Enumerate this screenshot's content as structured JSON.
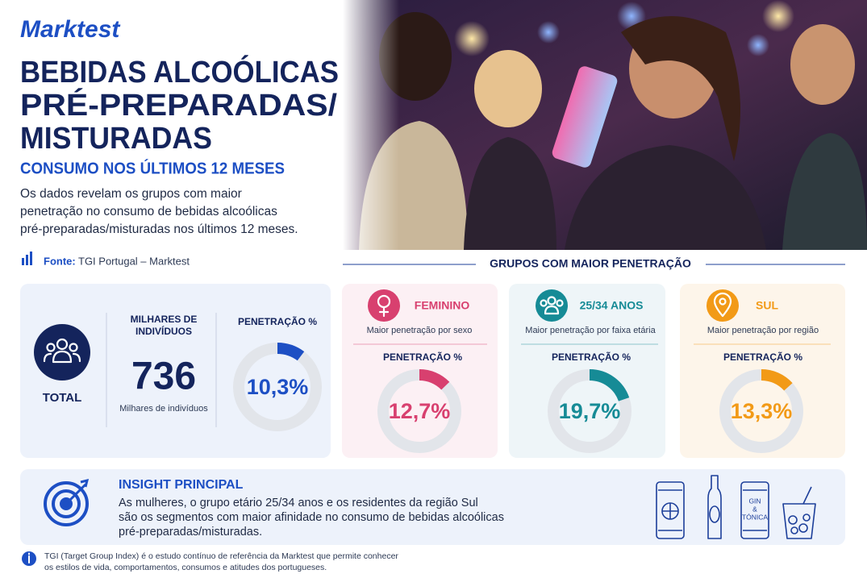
{
  "header": {
    "brand": "Marktest",
    "title": [
      "BEBIDAS ALCOÓLICAS",
      "PRÉ-PREPARADAS/",
      "MISTURADAS"
    ],
    "subtitle": "CONSUMO NOS ÚLTIMOS 12 MESES",
    "description": [
      "Os dados revelam os grupos com maior",
      "penetração no consumo de bebidas alcoólicas",
      "pré-preparadas/misturadas nos últimos 12 meses."
    ],
    "source_label": "Fonte:",
    "source": "TGI Portugal – Marktest"
  },
  "groups_heading": "GRUPOS COM MAIOR PENETRAÇÃO",
  "total": {
    "label": "TOTAL",
    "thousands_heading": [
      "MILHARES DE",
      "INDIVÍDUOS"
    ],
    "thousands": 736,
    "thousands_caption": "Milhares de indivíduos",
    "penetration_heading": "PENETRAÇÃO %",
    "penetration": {
      "value": 10.3,
      "label": "10,3%"
    },
    "color": "#1d4fc4"
  },
  "groups": [
    {
      "label": "FEMININO",
      "caption": "Maior penetração por sexo",
      "penetration_heading": "PENETRAÇÃO %",
      "penetration": {
        "value": 12.7,
        "label": "12,7%"
      },
      "color": "#d8406f"
    },
    {
      "label": "25/34 ANOS",
      "caption": "Maior penetração por faixa etária",
      "penetration_heading": "PENETRAÇÃO %",
      "penetration": {
        "value": 19.7,
        "label": "19,7%"
      },
      "color": "#168b96"
    },
    {
      "label": "SUL",
      "caption": "Maior penetração por região",
      "penetration_heading": "PENETRAÇÃO %",
      "penetration": {
        "value": 13.3,
        "label": "13,3%"
      },
      "color": "#f29a17"
    }
  ],
  "insight": {
    "title": "INSIGHT PRINCIPAL",
    "lines": [
      "As mulheres, o grupo etário 25/34 anos e os residentes da região Sul",
      "são os segmentos com maior afinidade no consumo de bebidas alcoólicas",
      "pré-preparadas/misturadas."
    ]
  },
  "drink_icon_label": [
    "GIN",
    "&",
    "TÓNICA"
  ],
  "footnote": [
    "TGI (Target Group Index) é o estudo contínuo de referência da Marktest que permite conhecer",
    "os estilos de vida, comportamentos, consumos e atitudes dos portugueses."
  ]
}
